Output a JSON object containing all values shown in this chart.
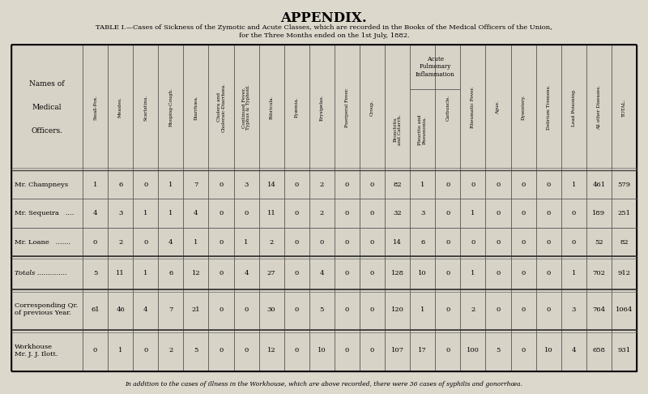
{
  "title": "APPENDIX.",
  "subtitle_line1": "TABLE I.—Cases of Sickness of the Zymotic and Acute Classes, which are recorded in the Books of the Medical Officers of the Union,",
  "subtitle_line2": "for the Three Months ended on the 1st July, 1882.",
  "footer": "In addition to the cases of illness in the Workhouse, which are above recorded, there were 36 cases of syphilis and gonorrhœa.",
  "bg_color": "#ddd8cc",
  "table_bg": "#d8d3c7",
  "col_header_texts": [
    "Small-Pox.",
    "Measles.",
    "Scarlatina.",
    "Hooping-Cough.",
    "Diarrhœa.",
    "Cholera and\nCholeraic-Diarrhœa.",
    "Continued Fever,\nTyphus & Typhoid.",
    "Febricula.",
    "Pyæmia.",
    "Erysipelas.",
    "Puerperal Fever.",
    "Croup.",
    "Bronchitis\nand Catarrh.",
    "Pleuritis and\nPneumonia.",
    "Carbuncle.",
    "Rheumatic Fever.",
    "Ague.",
    "Dysentery.",
    "Delirium Tremens.",
    "Lead Poisoning.",
    "All other Diseases.",
    "TOTAL."
  ],
  "acute_pulm_header": "Acute\nPulmonary\nInflammation",
  "names_header": "Names of\n\nMedical\n\nOfficers.",
  "rows": [
    {
      "name": "Mr. Champneys",
      "vals": [
        1,
        6,
        0,
        1,
        7,
        0,
        3,
        14,
        0,
        2,
        0,
        0,
        82,
        1,
        0,
        0,
        0,
        0,
        0,
        1,
        461,
        579
      ],
      "bold": false,
      "multiline": false
    },
    {
      "name": "Mr. Sequeira   ....",
      "vals": [
        4,
        3,
        1,
        1,
        4,
        0,
        0,
        11,
        0,
        2,
        0,
        0,
        32,
        3,
        0,
        1,
        0,
        0,
        0,
        0,
        189,
        251
      ],
      "bold": false,
      "multiline": false
    },
    {
      "name": "Mr. Loane   .......",
      "vals": [
        0,
        2,
        0,
        4,
        1,
        0,
        1,
        2,
        0,
        0,
        0,
        0,
        14,
        6,
        0,
        0,
        0,
        0,
        0,
        0,
        52,
        82
      ],
      "bold": false,
      "multiline": false
    },
    {
      "name": "Totals ..............",
      "vals": [
        5,
        11,
        1,
        6,
        12,
        0,
        4,
        27,
        0,
        4,
        0,
        0,
        128,
        10,
        0,
        1,
        0,
        0,
        0,
        1,
        702,
        912
      ],
      "bold": false,
      "multiline": false,
      "italic_name": true
    },
    {
      "name": "Corresponding Qr.\nof previous Year.",
      "vals": [
        61,
        46,
        4,
        7,
        21,
        0,
        0,
        30,
        0,
        5,
        0,
        0,
        120,
        1,
        0,
        2,
        0,
        0,
        0,
        3,
        764,
        1064
      ],
      "bold": false,
      "multiline": true
    },
    {
      "name": "Workhouse\nMr. J. J. Ilott.",
      "vals": [
        0,
        1,
        0,
        2,
        5,
        0,
        0,
        12,
        0,
        10,
        0,
        0,
        107,
        17,
        0,
        100,
        5,
        0,
        10,
        4,
        658,
        931
      ],
      "bold": false,
      "multiline": true
    }
  ],
  "row_heights_rel": [
    1.0,
    1.0,
    1.0,
    1.15,
    1.4,
    1.45
  ]
}
